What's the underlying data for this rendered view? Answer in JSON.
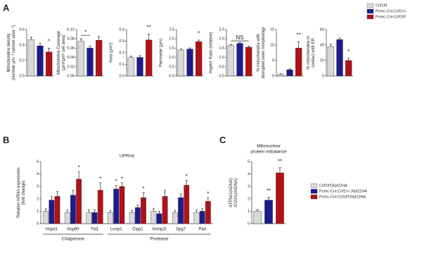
{
  "panel_labels": [
    "A",
    "B",
    "C"
  ],
  "legends": {
    "A": [
      {
        "name": "Crif1f/f",
        "color": "#d9d9d9"
      },
      {
        "name": "Pomc-Cre;Crif1+/-",
        "color": "#1c1c8c"
      },
      {
        "name": "Pomc-Cre;Crif1f/f",
        "color": "#b01217"
      }
    ],
    "C": [
      {
        "name": "Crif1f/f;Rpl22HA",
        "color": "#d9d9d9"
      },
      {
        "name": "Pomc-Cre;Crif1+/-;Rpl22HA",
        "color": "#1c1c8c"
      },
      {
        "name": "Pomc-Cre;Crif1f/f;Rpl22HA",
        "color": "#b01217"
      }
    ]
  },
  "chart_data": [
    {
      "type": "bar",
      "ylabel": [
        "Mitochondria density",
        "(number μm⁻² cytosol area⁻¹)"
      ],
      "values": [
        0.47,
        0.39,
        0.31
      ],
      "errors": [
        0.03,
        0.03,
        0.05
      ],
      "colors": [
        "#d9d9d9",
        "#1c1c8c",
        "#b01217"
      ],
      "ylim": [
        0,
        0.6
      ],
      "yticks": [
        {
          "value": 0,
          "label": "0.0"
        },
        0.2,
        0.4,
        0.6
      ],
      "annotations": [
        {
          "text": "*",
          "bars": [
            2
          ]
        }
      ]
    },
    {
      "type": "bar",
      "ylabel": [
        "Mitochondria Coverage",
        "(μm²/μm² cell area)"
      ],
      "values": [
        0.075,
        0.06,
        0.077
      ],
      "errors": [
        0.005,
        0.004,
        0.008
      ],
      "colors": [
        "#d9d9d9",
        "#1c1c8c",
        "#b01217"
      ],
      "ylim": [
        0,
        0.1
      ],
      "yticks": [
        {
          "value": 0,
          "label": "0.00"
        },
        0.02,
        0.04,
        0.06,
        0.08,
        {
          "value": 0.1,
          "label": "0.10"
        }
      ],
      "annotations": [
        {
          "text": "*",
          "bars": [
            0,
            1
          ]
        }
      ]
    },
    {
      "type": "bar",
      "ylabel": [
        "Area (μm²)"
      ],
      "values": [
        0.16,
        0.16,
        0.31
      ],
      "errors": [
        0.01,
        0.015,
        0.05
      ],
      "colors": [
        "#d9d9d9",
        "#1c1c8c",
        "#b01217"
      ],
      "ylim": [
        0,
        0.4
      ],
      "yticks": [
        {
          "value": 0,
          "label": "0.0"
        },
        0.1,
        0.2,
        0.3,
        0.4
      ],
      "annotations": [
        {
          "text": "**",
          "bars": [
            2
          ]
        }
      ]
    },
    {
      "type": "bar",
      "ylabel": [
        "Perimeter (μm)"
      ],
      "values": [
        1.4,
        1.45,
        1.85
      ],
      "errors": [
        0.05,
        0.06,
        0.08
      ],
      "colors": [
        "#d9d9d9",
        "#1c1c8c",
        "#b01217"
      ],
      "ylim": [
        0,
        2.5
      ],
      "yticks": [
        {
          "value": 0,
          "label": "0.0"
        },
        0.5,
        {
          "value": 1,
          "label": "1.0"
        },
        1.5,
        {
          "value": 2,
          "label": "2.0"
        },
        2.5
      ],
      "annotations": [
        {
          "text": "*",
          "bars": [
            2
          ]
        }
      ]
    },
    {
      "type": "bar",
      "ylabel": [
        "Aspect Ratio (relative)"
      ],
      "values": [
        1.65,
        1.75,
        1.55
      ],
      "errors": [
        0.05,
        0.06,
        0.05
      ],
      "colors": [
        "#d9d9d9",
        "#1c1c8c",
        "#b01217"
      ],
      "ylim": [
        0,
        2.5
      ],
      "yticks": [
        {
          "value": 0,
          "label": "0.0"
        },
        0.5,
        {
          "value": 1,
          "label": "1.0"
        },
        1.5,
        {
          "value": 2,
          "label": "2.0"
        },
        2.5
      ],
      "annotations": [
        {
          "text": "NS",
          "bars": [
            0,
            2
          ]
        }
      ]
    },
    {
      "type": "bar",
      "ylabel": [
        "% mitochondria with",
        "disrupted inner morphology"
      ],
      "values": [
        0.5,
        2,
        9
      ],
      "errors": [
        0.2,
        0.3,
        2
      ],
      "colors": [
        "#d9d9d9",
        "#1c1c8c",
        "#b01217"
      ],
      "ylim": [
        0,
        15
      ],
      "yticks": [
        0,
        5,
        10,
        15
      ],
      "annotations": [
        {
          "text": "**",
          "bars": [
            2
          ]
        }
      ]
    },
    {
      "type": "bar",
      "ylabel": [
        "% mitochondria in",
        "contact with ER"
      ],
      "values": [
        38,
        47,
        20
      ],
      "errors": [
        3,
        2,
        3
      ],
      "colors": [
        "#d9d9d9",
        "#1c1c8c",
        "#b01217"
      ],
      "ylim": [
        0,
        60
      ],
      "yticks": [
        0,
        20,
        40,
        60
      ],
      "annotations": [
        {
          "text": "*",
          "bars": [
            2
          ]
        }
      ]
    },
    {
      "type": "grouped_bar",
      "title": "UPRmt",
      "ylabel": [
        "Relative mRNA expression",
        "(fold change)"
      ],
      "categories": [
        "Hspd1",
        "Hsp90",
        "Tid1",
        "Lonp1",
        "Clpp1",
        "Immp2l",
        "Spg7",
        "Parl"
      ],
      "series": [
        {
          "name": "Crif1f/f;Rpl22HA",
          "color": "#d9d9d9",
          "values": [
            1.0,
            0.9,
            0.9,
            0.9,
            0.9,
            1.0,
            0.9,
            0.9
          ],
          "errors": [
            0.2,
            0.2,
            0.2,
            0.15,
            0.15,
            0.2,
            0.15,
            0.2
          ]
        },
        {
          "name": "Pomc-Cre;Crif1+/-;Rpl22HA",
          "color": "#1c1c8c",
          "values": [
            1.9,
            2.3,
            0.9,
            2.8,
            1.3,
            0.8,
            2.1,
            1.0
          ],
          "errors": [
            0.3,
            0.4,
            0.2,
            0.3,
            0.2,
            0.2,
            0.3,
            0.2
          ]
        },
        {
          "name": "Pomc-Cre;Crif1f/f;Rpl22HA",
          "color": "#b01217",
          "values": [
            2.2,
            3.6,
            2.7,
            3.0,
            2.1,
            2.2,
            3.1,
            1.8
          ],
          "errors": [
            0.4,
            0.6,
            0.6,
            0.3,
            0.4,
            0.5,
            0.4,
            0.3
          ]
        }
      ],
      "ylim": [
        0,
        5
      ],
      "yticks": [
        0,
        1,
        2,
        3,
        4,
        5
      ],
      "groups": [
        {
          "label": "Chaperone",
          "from": 0,
          "to": 2
        },
        {
          "label": "Protease",
          "from": 3,
          "to": 7
        }
      ],
      "annotations": [
        {
          "text": "*",
          "category": 1,
          "series": 2
        },
        {
          "text": "*",
          "category": 2,
          "series": 2
        },
        {
          "text": "*",
          "category": 3,
          "series": 1
        },
        {
          "text": "*",
          "category": 3,
          "series": 2
        },
        {
          "text": "*",
          "category": 4,
          "series": 2
        },
        {
          "text": "*",
          "category": 6,
          "series": 2
        },
        {
          "text": "*",
          "category": 7,
          "series": 2
        }
      ]
    },
    {
      "type": "bar",
      "title": [
        "Mitonuclear",
        "protein imbalance"
      ],
      "ylabel": [
        "ATP5A1(nDNA)",
        "/COX1(mtDNA)"
      ],
      "values": [
        1.0,
        1.9,
        4.1
      ],
      "errors": [
        0.1,
        0.2,
        0.4
      ],
      "colors": [
        "#d9d9d9",
        "#1c1c8c",
        "#b01217"
      ],
      "ylim": [
        0,
        5
      ],
      "yticks": [
        0,
        1,
        2,
        3,
        4,
        5
      ],
      "annotations": [
        {
          "text": "**",
          "bars": [
            1
          ]
        },
        {
          "text": "**",
          "bars": [
            2
          ]
        }
      ]
    }
  ]
}
